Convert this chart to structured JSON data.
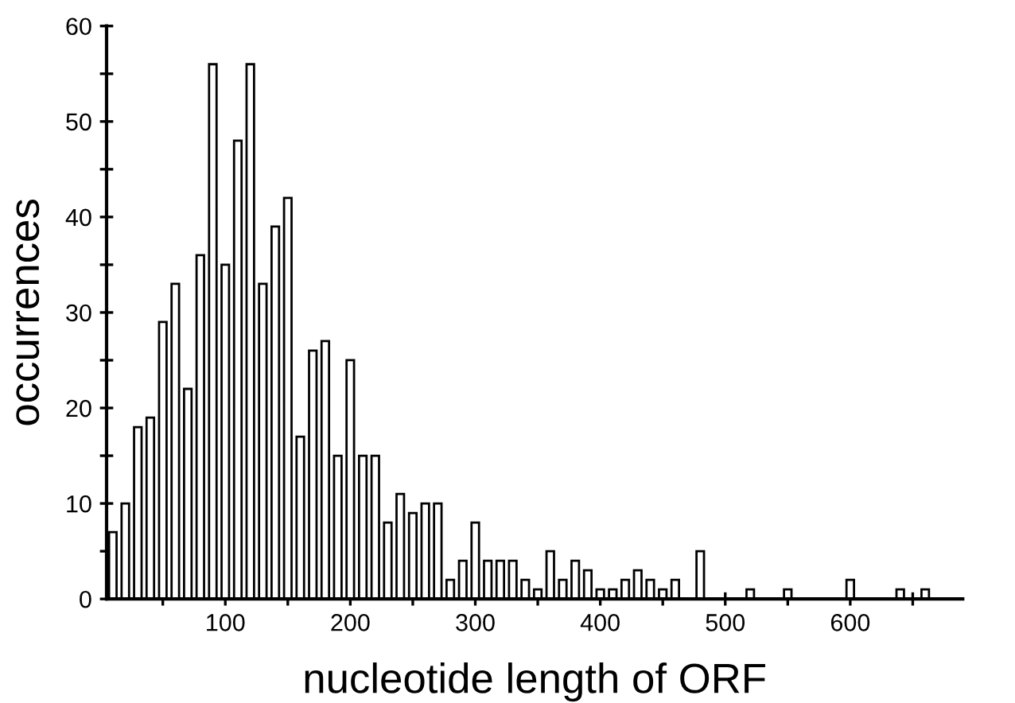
{
  "chart_data": {
    "type": "bar",
    "xlabel": "nucleotide length of ORF",
    "ylabel": "occurrences",
    "x": [
      10,
      20,
      30,
      40,
      50,
      60,
      70,
      80,
      90,
      100,
      110,
      120,
      130,
      140,
      150,
      160,
      170,
      180,
      190,
      200,
      210,
      220,
      230,
      240,
      250,
      260,
      270,
      280,
      290,
      300,
      310,
      320,
      330,
      340,
      350,
      360,
      370,
      380,
      390,
      400,
      410,
      420,
      430,
      440,
      450,
      460,
      480,
      520,
      550,
      600,
      640,
      660
    ],
    "values": [
      7,
      10,
      18,
      19,
      29,
      33,
      22,
      36,
      56,
      35,
      48,
      56,
      33,
      39,
      42,
      17,
      26,
      27,
      15,
      25,
      15,
      15,
      8,
      11,
      9,
      10,
      10,
      2,
      4,
      8,
      4,
      4,
      4,
      2,
      1,
      5,
      2,
      4,
      3,
      1,
      1,
      2,
      3,
      2,
      1,
      2,
      5,
      1,
      1,
      2,
      1,
      1
    ],
    "color": "#ffffff",
    "xlim": [
      5,
      690
    ],
    "ylim": [
      0,
      60
    ],
    "xticks": [
      {
        "value": 50,
        "label": null
      },
      100,
      {
        "value": 150,
        "label": null
      },
      200,
      {
        "value": 250,
        "label": null
      },
      300,
      {
        "value": 350,
        "label": null
      },
      400,
      {
        "value": 450,
        "label": null
      },
      500,
      {
        "value": 550,
        "label": null
      },
      600,
      {
        "value": 650,
        "label": null
      }
    ],
    "yticks": [
      0,
      {
        "value": 5,
        "label": null
      },
      10,
      {
        "value": 15,
        "label": null
      },
      20,
      {
        "value": 25,
        "label": null
      },
      30,
      {
        "value": 35,
        "label": null
      },
      40,
      {
        "value": 45,
        "label": null
      },
      50,
      {
        "value": 55,
        "label": null
      },
      60
    ],
    "grid": false,
    "legend": false
  }
}
